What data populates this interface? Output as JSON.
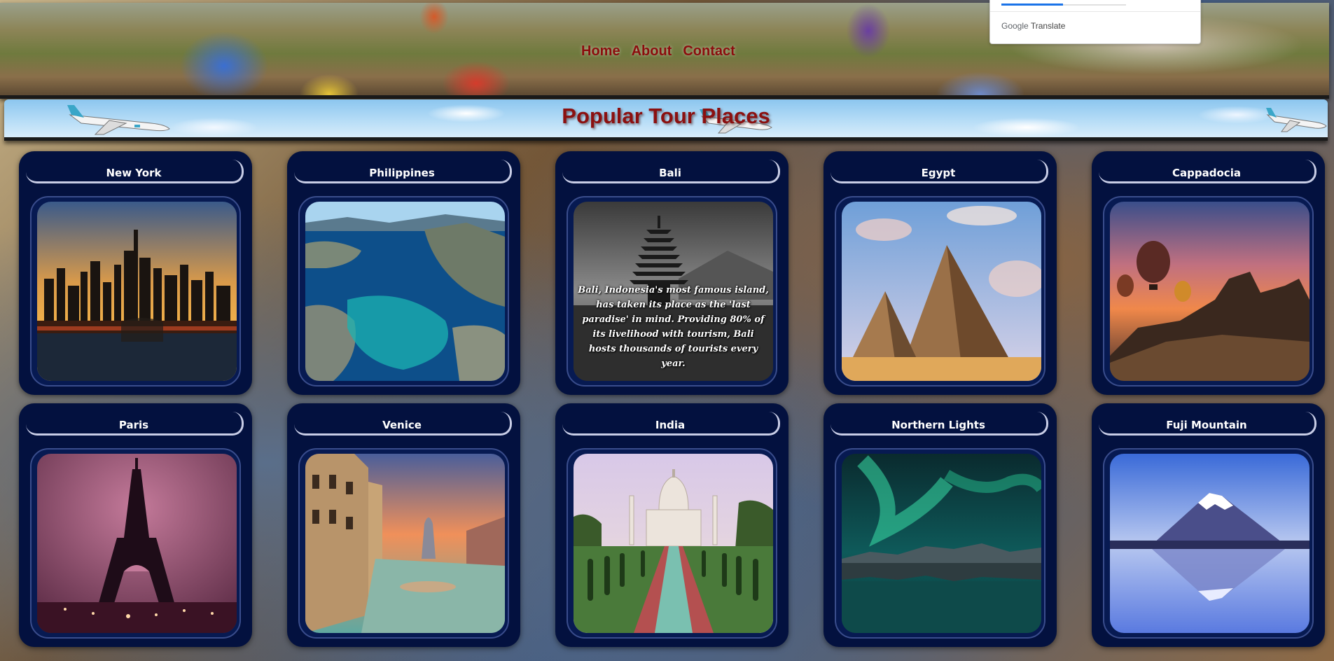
{
  "nav": {
    "home": "Home",
    "about": "About",
    "contact": "Contact"
  },
  "translate": {
    "brand_google": "Google",
    "brand_translate": "Translate"
  },
  "banner": {
    "title": "Popular Tour Places"
  },
  "cards": [
    {
      "title": "New York",
      "image": "new-york-skyline-night"
    },
    {
      "title": "Philippines",
      "image": "lagoon-limestone-cliffs"
    },
    {
      "title": "Bali",
      "image": "bali-pagoda-bw",
      "caption": "Bali, Indonesia's most famous island, has taken its place as the 'last paradise' in mind. Providing 80% of its livelihood with tourism, Bali hosts thousands of tourists every year."
    },
    {
      "title": "Egypt",
      "image": "pyramids"
    },
    {
      "title": "Cappadocia",
      "image": "hot-air-balloons-sunset"
    },
    {
      "title": "Paris",
      "image": "eiffel-tower-pink"
    },
    {
      "title": "Venice",
      "image": "grand-canal-sunset"
    },
    {
      "title": "India",
      "image": "taj-mahal"
    },
    {
      "title": "Northern Lights",
      "image": "aurora-lake"
    },
    {
      "title": "Fuji Mountain",
      "image": "mount-fuji-reflection"
    }
  ],
  "colors": {
    "card_bg": "#03113f",
    "nav_text": "#8b0d0d",
    "title_text": "#8b1010",
    "translate_accent": "#1a73e8"
  }
}
